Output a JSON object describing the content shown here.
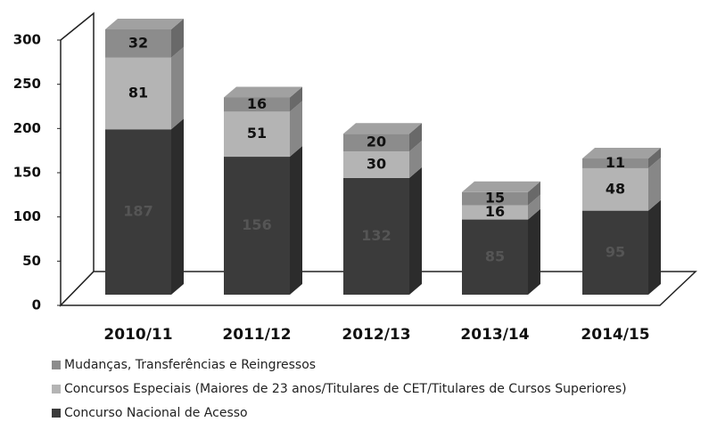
{
  "chart_data": {
    "type": "bar3d_stacked",
    "categories": [
      "2010/11",
      "2011/12",
      "2012/13",
      "2013/14",
      "2014/15"
    ],
    "series": [
      {
        "name": "Concurso Nacional de Acesso",
        "color": "#3b3b3b",
        "values": [
          187,
          156,
          132,
          85,
          95
        ]
      },
      {
        "name": "Concursos Especiais (Maiores de 23 anos/Titulares de CET/Titulares de Cursos Superiores)",
        "color": "#b4b4b4",
        "values": [
          81,
          51,
          30,
          16,
          48
        ]
      },
      {
        "name": "Mudanças, Transferências e Reingressos",
        "color": "#8c8c8c",
        "values": [
          32,
          16,
          20,
          15,
          11
        ]
      }
    ],
    "ylim": [
      0,
      300
    ],
    "yticks": [
      0,
      50,
      100,
      150,
      200,
      250,
      300
    ]
  }
}
